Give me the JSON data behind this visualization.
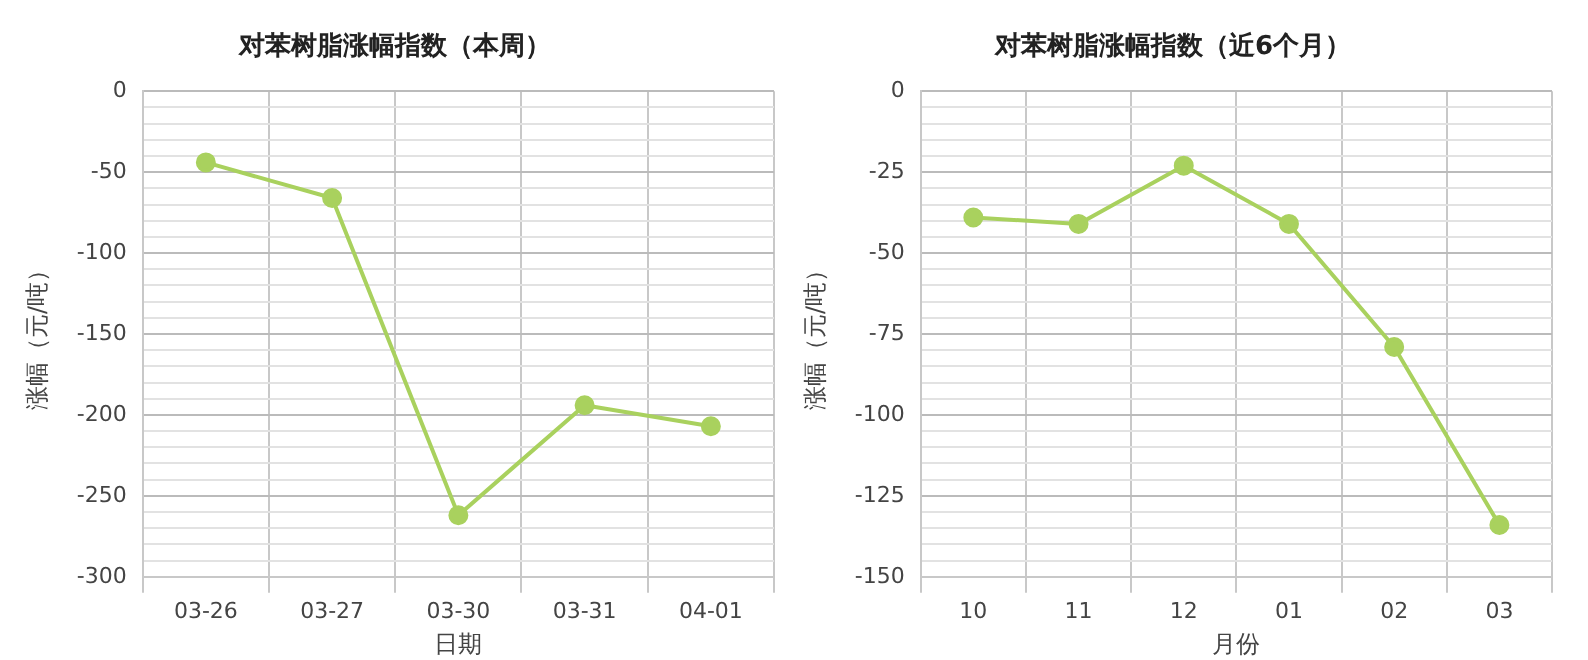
{
  "chart_data": [
    {
      "type": "line",
      "title": "对苯树脂涨幅指数（本周）",
      "xlabel": "日期",
      "ylabel": "涨幅（元/吨）",
      "categories": [
        "03-26",
        "03-27",
        "03-30",
        "03-31",
        "04-01"
      ],
      "series": [
        {
          "color": "#a9d15e",
          "values": [
            -44,
            -66,
            -262,
            -194,
            -207
          ]
        }
      ],
      "ylim": [
        -300,
        0
      ],
      "yticks": [
        -300,
        {
          "value": -290,
          "label": null
        },
        {
          "value": -280,
          "label": null
        },
        {
          "value": -270,
          "label": null
        },
        {
          "value": -260,
          "label": null
        },
        -250,
        {
          "value": -240,
          "label": null
        },
        {
          "value": -230,
          "label": null
        },
        {
          "value": -220,
          "label": null
        },
        {
          "value": -210,
          "label": null
        },
        -200,
        {
          "value": -190,
          "label": null
        },
        {
          "value": -180,
          "label": null
        },
        {
          "value": -170,
          "label": null
        },
        {
          "value": -160,
          "label": null
        },
        -150,
        {
          "value": -140,
          "label": null
        },
        {
          "value": -130,
          "label": null
        },
        {
          "value": -120,
          "label": null
        },
        {
          "value": -110,
          "label": null
        },
        -100,
        {
          "value": -90,
          "label": null
        },
        {
          "value": -80,
          "label": null
        },
        {
          "value": -70,
          "label": null
        },
        {
          "value": -60,
          "label": null
        },
        -50,
        {
          "value": -40,
          "label": null
        },
        {
          "value": -30,
          "label": null
        },
        {
          "value": -20,
          "label": null
        },
        {
          "value": -10,
          "label": null
        },
        0
      ],
      "grid": true,
      "marker": "circle"
    },
    {
      "type": "line",
      "title": "对苯树脂涨幅指数（近6个月）",
      "xlabel": "月份",
      "ylabel": "涨幅（元/吨）",
      "categories": [
        "10",
        "11",
        "12",
        "01",
        "02",
        "03"
      ],
      "series": [
        {
          "color": "#a9d15e",
          "values": [
            -39,
            -41,
            -23,
            -41,
            -79,
            -134
          ]
        }
      ],
      "ylim": [
        -150,
        0
      ],
      "yticks": [
        -150,
        {
          "value": -145,
          "label": null
        },
        {
          "value": -140,
          "label": null
        },
        {
          "value": -135,
          "label": null
        },
        {
          "value": -130,
          "label": null
        },
        -125,
        {
          "value": -120,
          "label": null
        },
        {
          "value": -115,
          "label": null
        },
        {
          "value": -110,
          "label": null
        },
        {
          "value": -105,
          "label": null
        },
        -100,
        {
          "value": -95,
          "label": null
        },
        {
          "value": -90,
          "label": null
        },
        {
          "value": -85,
          "label": null
        },
        {
          "value": -80,
          "label": null
        },
        -75,
        {
          "value": -70,
          "label": null
        },
        {
          "value": -65,
          "label": null
        },
        {
          "value": -60,
          "label": null
        },
        {
          "value": -55,
          "label": null
        },
        -50,
        {
          "value": -45,
          "label": null
        },
        {
          "value": -40,
          "label": null
        },
        {
          "value": -35,
          "label": null
        },
        {
          "value": -30,
          "label": null
        },
        -25,
        {
          "value": -20,
          "label": null
        },
        {
          "value": -15,
          "label": null
        },
        {
          "value": -10,
          "label": null
        },
        {
          "value": -5,
          "label": null
        },
        0
      ],
      "grid": true,
      "marker": "circle"
    }
  ]
}
